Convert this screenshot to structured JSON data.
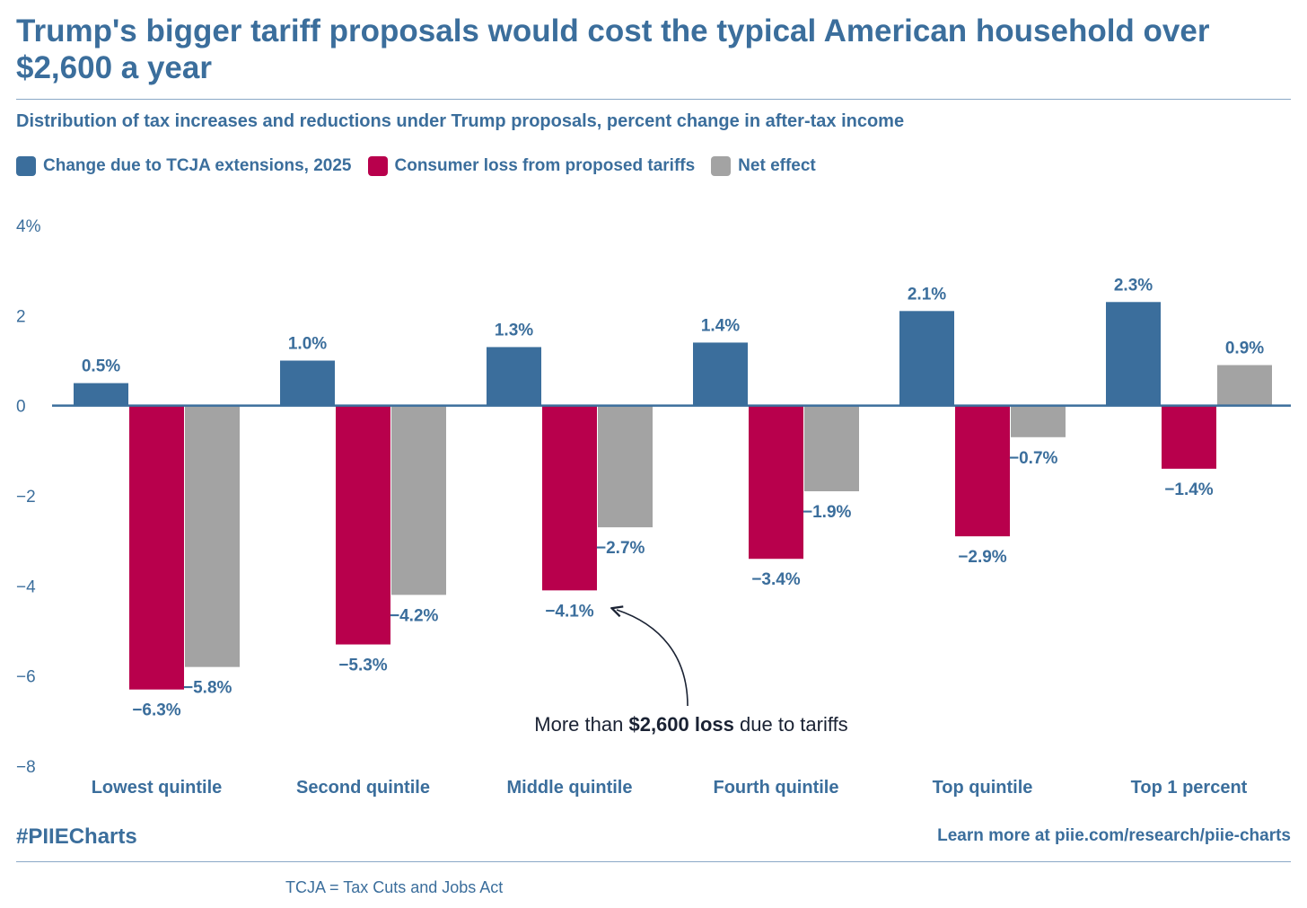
{
  "header": {
    "title": "Trump's bigger tariff proposals would cost the typical American household over $2,600 a year",
    "subtitle": "Distribution of tax increases and reductions under Trump proposals, percent change in after-tax income"
  },
  "footer": {
    "hashtag": "#PIIECharts",
    "link": "Learn more at piie.com/research/piie-charts",
    "note": "TCJA = Tax Cuts and Jobs Act"
  },
  "colors": {
    "tcja": "#3b6e9c",
    "tariffs": "#b8004c",
    "net": "#a3a3a3",
    "text": "#3b6e9c",
    "annotation": "#1a2233"
  },
  "chart_data": {
    "type": "bar",
    "title": "Trump's bigger tariff proposals would cost the typical American household over $2,600 a year",
    "subtitle": "Distribution of tax increases and reductions under Trump proposals, percent change in after-tax income",
    "xlabel": "",
    "ylabel": "",
    "ylim": [
      -8,
      4
    ],
    "yticks": [
      {
        "value": 4,
        "label": "4%"
      },
      {
        "value": 2,
        "label": "2"
      },
      {
        "value": 0,
        "label": "0"
      },
      {
        "value": -2,
        "label": "−2"
      },
      {
        "value": -4,
        "label": "−4"
      },
      {
        "value": -6,
        "label": "−6"
      },
      {
        "value": -8,
        "label": "−8"
      }
    ],
    "categories": [
      "Lowest quintile",
      "Second quintile",
      "Middle quintile",
      "Fourth quintile",
      "Top quintile",
      "Top 1 percent"
    ],
    "legend_position": "top-left",
    "series": [
      {
        "name": "Change due to TCJA extensions, 2025",
        "color_key": "tcja",
        "values": [
          0.5,
          1.0,
          1.3,
          1.4,
          2.1,
          2.3
        ],
        "labels": [
          "0.5%",
          "1.0%",
          "1.3%",
          "1.4%",
          "2.1%",
          "2.3%"
        ]
      },
      {
        "name": "Consumer loss from proposed tariffs",
        "color_key": "tariffs",
        "values": [
          -6.3,
          -5.3,
          -4.1,
          -3.4,
          -2.9,
          -1.4
        ],
        "labels": [
          "−6.3%",
          "−5.3%",
          "−4.1%",
          "−3.4%",
          "−2.9%",
          "−1.4%"
        ]
      },
      {
        "name": "Net effect",
        "color_key": "net",
        "values": [
          -5.8,
          -4.2,
          -2.7,
          -1.9,
          -0.7,
          0.9
        ],
        "labels": [
          "−5.8%",
          "−4.2%",
          "−2.7%",
          "−1.9%",
          "−0.7%",
          "0.9%"
        ]
      }
    ],
    "annotation": {
      "pre": "More than ",
      "bold": "$2,600 loss",
      "post": " due to tariffs",
      "points_to": {
        "category": "Middle quintile",
        "series": "Consumer loss from proposed tariffs"
      }
    }
  }
}
